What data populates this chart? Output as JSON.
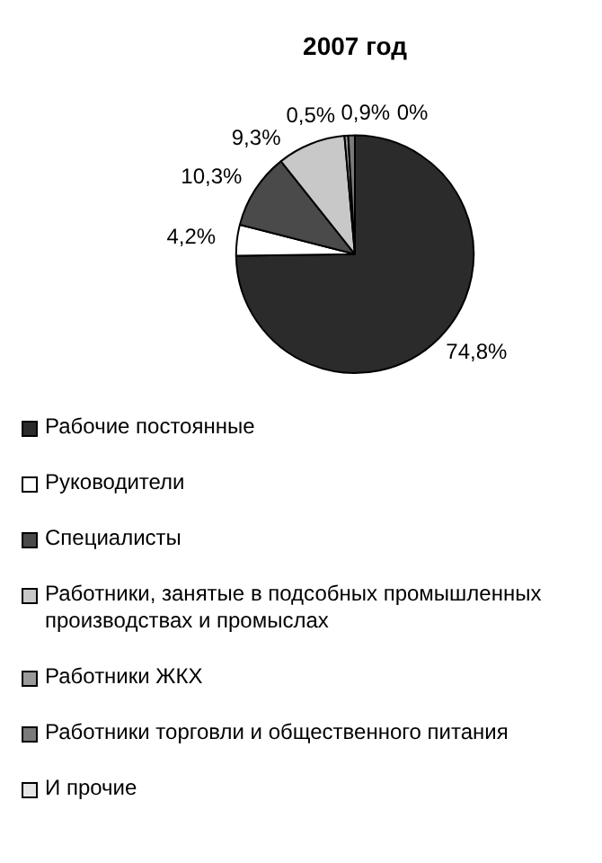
{
  "chart_data": {
    "type": "pie",
    "title": "2007 год",
    "categories": [
      "Рабочие постоянные",
      "Руководители",
      "Специалисты",
      "Работники, занятые в подсобных промышленных производствах и промыслах",
      "Работники ЖКХ",
      "Работники торговли и общественного питания",
      "И прочие"
    ],
    "values": [
      74.8,
      4.2,
      10.3,
      9.3,
      0.5,
      0.9,
      0
    ],
    "value_labels": [
      "74,8%",
      "4,2%",
      "10,3%",
      "9,3%",
      "0,5%",
      "0,9%",
      "0%"
    ],
    "colors": [
      "#2b2b2b",
      "#ffffff",
      "#4a4a4a",
      "#c8c8c8",
      "#9a9a9a",
      "#7a7a7a",
      "#e6e6e6"
    ],
    "legend": "bottom"
  }
}
